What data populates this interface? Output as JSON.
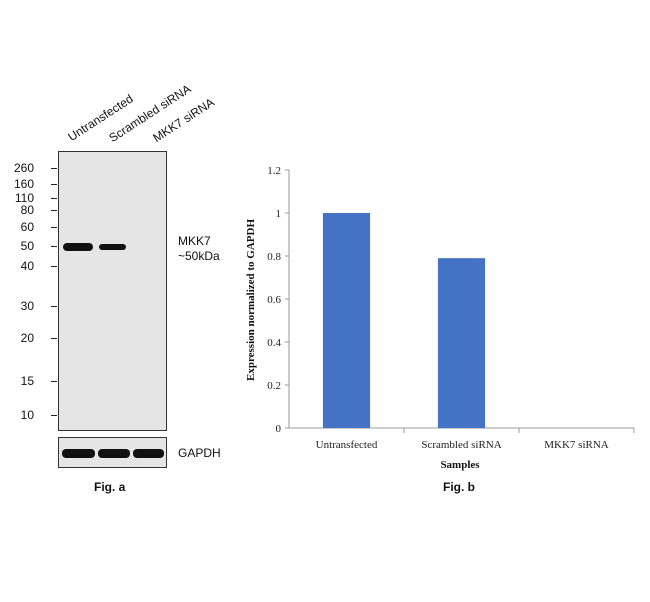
{
  "blot": {
    "lanes": [
      "Untransfected",
      "Scrambled siRNA",
      "MKK7 siRNA"
    ],
    "mw_markers": [
      "260",
      "160",
      "110",
      "80",
      "60",
      "50",
      "40",
      "30",
      "20",
      "15",
      "10"
    ],
    "target_label": "MKK7",
    "target_size": "~50kDa",
    "loading_control": "GAPDH",
    "figure_label": "Fig. a"
  },
  "chart_data": {
    "type": "bar",
    "categories": [
      "Untransfected",
      "Scrambled siRNA",
      "MKK7 siRNA"
    ],
    "values": [
      1.0,
      0.79,
      0.0
    ],
    "title": "",
    "xlabel": "Samples",
    "ylabel": "Expression normalized to GAPDH",
    "ylim": [
      0,
      1.2
    ],
    "yticks": [
      "0",
      "0.2",
      "0.4",
      "0.6",
      "0.8",
      "1",
      "1.2"
    ],
    "bar_color": "#4472c4",
    "figure_label": "Fig. b"
  }
}
